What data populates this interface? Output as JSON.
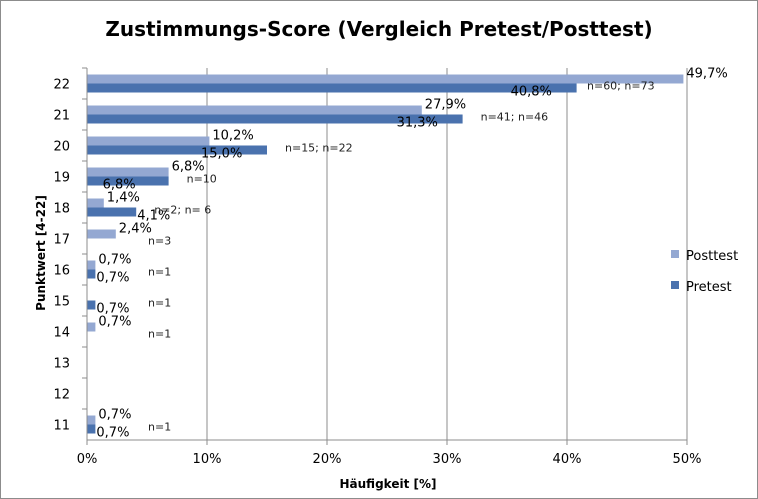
{
  "chart_data": {
    "type": "bar",
    "orientation": "horizontal",
    "title": "Zustimmungs-Score (Vergleich Pretest/Posttest)",
    "xlabel": "Häufigkeit [%]",
    "ylabel": "Punktwert [4-22]",
    "xlim": [
      0,
      50
    ],
    "xticks": [
      "0%",
      "10%",
      "20%",
      "30%",
      "40%",
      "50%"
    ],
    "grid": "vertical",
    "legend_position": "right",
    "categories": [
      "22",
      "21",
      "20",
      "19",
      "18",
      "17",
      "16",
      "15",
      "14",
      "13",
      "12",
      "11"
    ],
    "series": [
      {
        "name": "Posttest",
        "color": "#94A8D2",
        "values": [
          49.7,
          27.9,
          10.2,
          6.8,
          1.4,
          2.4,
          0.7,
          null,
          0.7,
          null,
          null,
          0.7
        ],
        "labels": [
          "49,7%",
          "27,9%",
          "10,2%",
          "6,8%",
          "1,4%",
          "2,4%",
          "0,7%",
          "",
          "0,7%",
          "",
          "",
          "0,7%"
        ]
      },
      {
        "name": "Pretest",
        "color": "#4A72AE",
        "values": [
          40.8,
          31.3,
          15.0,
          6.8,
          4.1,
          null,
          0.7,
          0.7,
          null,
          null,
          null,
          0.7
        ],
        "labels": [
          "40,8%",
          "31,3%",
          "15,0%",
          "6,8%",
          "4,1%",
          "",
          "0,7%",
          "0,7%",
          "",
          "",
          "",
          "0,7%"
        ]
      }
    ],
    "annotations": [
      "n=60; n=73",
      "n=41; n=46",
      "n=15; n=22",
      "n=10",
      "n=2; n= 6",
      "n=3",
      "n=1",
      "n=1",
      "n=1",
      "",
      "",
      "n=1"
    ]
  }
}
